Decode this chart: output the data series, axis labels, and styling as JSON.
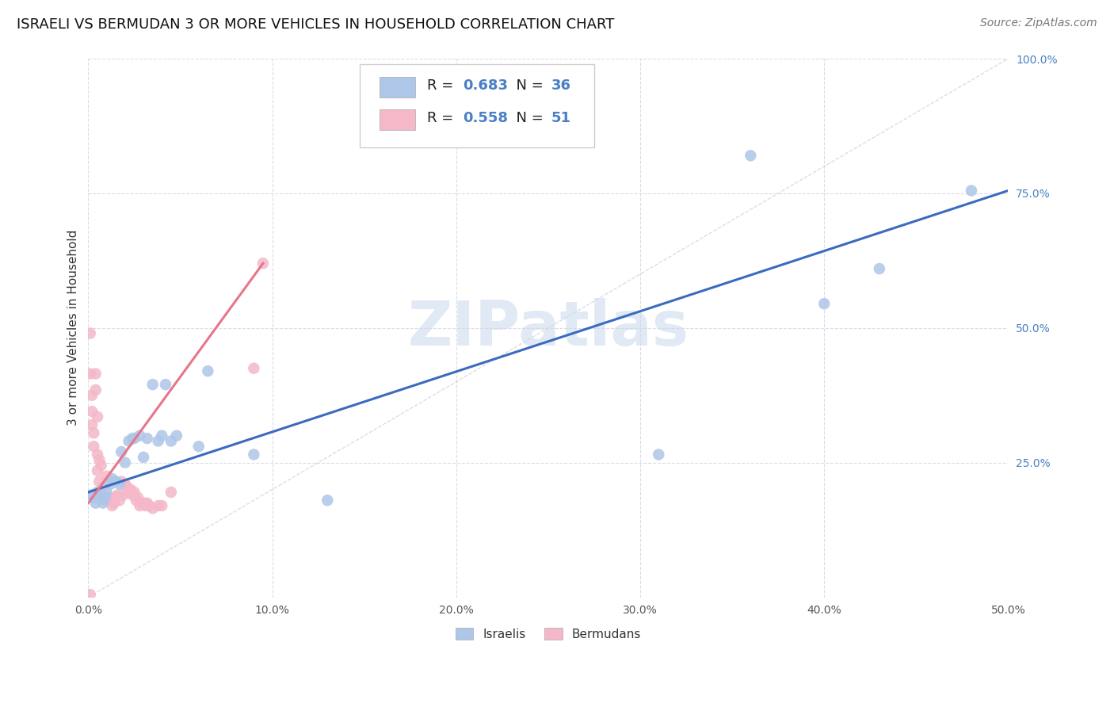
{
  "title": "ISRAELI VS BERMUDAN 3 OR MORE VEHICLES IN HOUSEHOLD CORRELATION CHART",
  "source": "Source: ZipAtlas.com",
  "ylabel": "3 or more Vehicles in Household",
  "xlim": [
    0.0,
    0.5
  ],
  "ylim": [
    0.0,
    1.0
  ],
  "xticks": [
    0.0,
    0.1,
    0.2,
    0.3,
    0.4,
    0.5
  ],
  "xticklabels": [
    "0.0%",
    "10.0%",
    "20.0%",
    "30.0%",
    "40.0%",
    "50.0%"
  ],
  "yticks": [
    0.0,
    0.25,
    0.5,
    0.75,
    1.0
  ],
  "yticklabels": [
    "",
    "25.0%",
    "50.0%",
    "75.0%",
    "100.0%"
  ],
  "israeli_R": 0.683,
  "israeli_N": 36,
  "bermudan_R": 0.558,
  "bermudan_N": 51,
  "israeli_color": "#aec6e8",
  "bermudan_color": "#f4b8c8",
  "israeli_line_color": "#3a6bbf",
  "bermudan_line_color": "#e8758a",
  "diagonal_color": "#ccbbcc",
  "watermark": "ZIPatlas",
  "watermark_color": "#c8d8ec",
  "israeli_x": [
    0.002,
    0.003,
    0.004,
    0.005,
    0.006,
    0.007,
    0.008,
    0.009,
    0.01,
    0.012,
    0.013,
    0.015,
    0.017,
    0.018,
    0.02,
    0.022,
    0.024,
    0.025,
    0.028,
    0.03,
    0.032,
    0.035,
    0.038,
    0.04,
    0.042,
    0.045,
    0.048,
    0.06,
    0.065,
    0.09,
    0.13,
    0.31,
    0.36,
    0.4,
    0.43,
    0.48
  ],
  "israeli_y": [
    0.19,
    0.185,
    0.175,
    0.195,
    0.185,
    0.19,
    0.175,
    0.185,
    0.195,
    0.21,
    0.22,
    0.215,
    0.21,
    0.27,
    0.25,
    0.29,
    0.295,
    0.295,
    0.3,
    0.26,
    0.295,
    0.395,
    0.29,
    0.3,
    0.395,
    0.29,
    0.3,
    0.28,
    0.42,
    0.265,
    0.18,
    0.265,
    0.82,
    0.545,
    0.61,
    0.755
  ],
  "bermudan_x": [
    0.001,
    0.001,
    0.001,
    0.002,
    0.002,
    0.002,
    0.003,
    0.003,
    0.004,
    0.004,
    0.005,
    0.005,
    0.005,
    0.006,
    0.006,
    0.007,
    0.007,
    0.008,
    0.008,
    0.009,
    0.01,
    0.01,
    0.011,
    0.012,
    0.013,
    0.014,
    0.015,
    0.016,
    0.017,
    0.018,
    0.019,
    0.02,
    0.021,
    0.022,
    0.023,
    0.024,
    0.025,
    0.026,
    0.027,
    0.028,
    0.029,
    0.03,
    0.031,
    0.032,
    0.033,
    0.035,
    0.038,
    0.04,
    0.045,
    0.09,
    0.095
  ],
  "bermudan_y": [
    0.49,
    0.415,
    0.005,
    0.375,
    0.345,
    0.32,
    0.305,
    0.28,
    0.415,
    0.385,
    0.335,
    0.265,
    0.235,
    0.255,
    0.215,
    0.245,
    0.195,
    0.205,
    0.19,
    0.18,
    0.225,
    0.185,
    0.185,
    0.18,
    0.17,
    0.175,
    0.185,
    0.19,
    0.18,
    0.215,
    0.19,
    0.21,
    0.205,
    0.195,
    0.2,
    0.19,
    0.195,
    0.18,
    0.185,
    0.17,
    0.175,
    0.175,
    0.17,
    0.175,
    0.17,
    0.165,
    0.17,
    0.17,
    0.195,
    0.425,
    0.62
  ],
  "background_color": "#ffffff",
  "grid_color": "#d8d8e8",
  "title_fontsize": 13,
  "axis_label_fontsize": 11,
  "tick_fontsize": 10,
  "legend_fontsize": 13,
  "source_fontsize": 10,
  "israeli_line_x": [
    0.0,
    0.5
  ],
  "israeli_line_y": [
    0.195,
    0.755
  ],
  "bermudan_line_x": [
    0.0,
    0.095
  ],
  "bermudan_line_y": [
    0.175,
    0.62
  ]
}
